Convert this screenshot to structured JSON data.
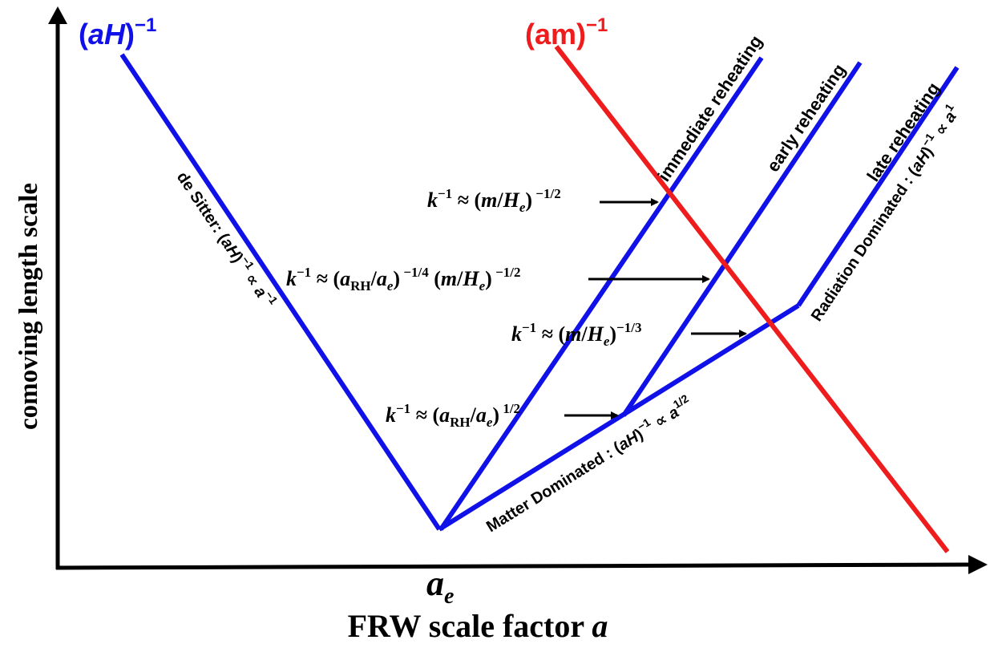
{
  "colors": {
    "hubble": "#1010e8",
    "mass": "#ee1c1c",
    "axis": "#000000"
  },
  "axes": {
    "x_title_prefix": "FRW scale factor ",
    "x_title_var": "a",
    "y_title": "comoving length scale",
    "ae_base": "a",
    "ae_sub": "e"
  },
  "curves": {
    "hubble": {
      "base": "(",
      "var": "aH",
      "close": ")",
      "exp": "−1"
    },
    "mass": {
      "base": "(",
      "var": "am",
      "close": ")",
      "exp": "−1"
    }
  },
  "phases": {
    "de_sitter": {
      "prefix": "de Sitter: (",
      "var": "aH",
      "close": ")",
      "exp": "−1",
      "prop": " ∝ ",
      "a": "a",
      "a_exp": "−1"
    },
    "matter": {
      "prefix": "Matter Dominated : (",
      "var": "aH",
      "close": ")",
      "exp": "−1",
      "prop": " ∝ ",
      "a": "a",
      "a_exp": "1/2"
    },
    "radiation": {
      "prefix": "Radiation Dominated : (",
      "var": "aH",
      "close": ")",
      "exp": "−1",
      "prop": " ∝ ",
      "a": "a",
      "a_exp": "1"
    }
  },
  "scenarios": {
    "immediate": "immediate reheating",
    "early": "early reheating",
    "late": "late reheating"
  },
  "annotations": [
    {
      "id": "immediate",
      "text": "k⁻¹ ≈ (m/Hₑ)⁻¹ᐟ²"
    },
    {
      "id": "early",
      "text": "k⁻¹ ≈ (a_RH/aₑ)⁻¹ᐟ⁴ (m/Hₑ)⁻¹ᐟ²"
    },
    {
      "id": "late",
      "text": "k⁻¹ ≈ (m/Hₑ)⁻¹ᐟ³"
    },
    {
      "id": "reheat",
      "text": "k⁻¹ ≈ (a_RH/aₑ)¹ᐟ²"
    }
  ],
  "ann": {
    "k": "k",
    "neg1": "−1",
    "approx": " ≈ (",
    "m": "m",
    "slash": "/",
    "H": "H",
    "e": "e",
    "close": ")",
    "a": "a",
    "RH": "RH",
    "exp_half_neg": " −1/2",
    "exp_quarter_neg": " −1/4",
    "exp_third_neg": "−1/3",
    "exp_half": " 1/2",
    "space_paren": " ("
  }
}
